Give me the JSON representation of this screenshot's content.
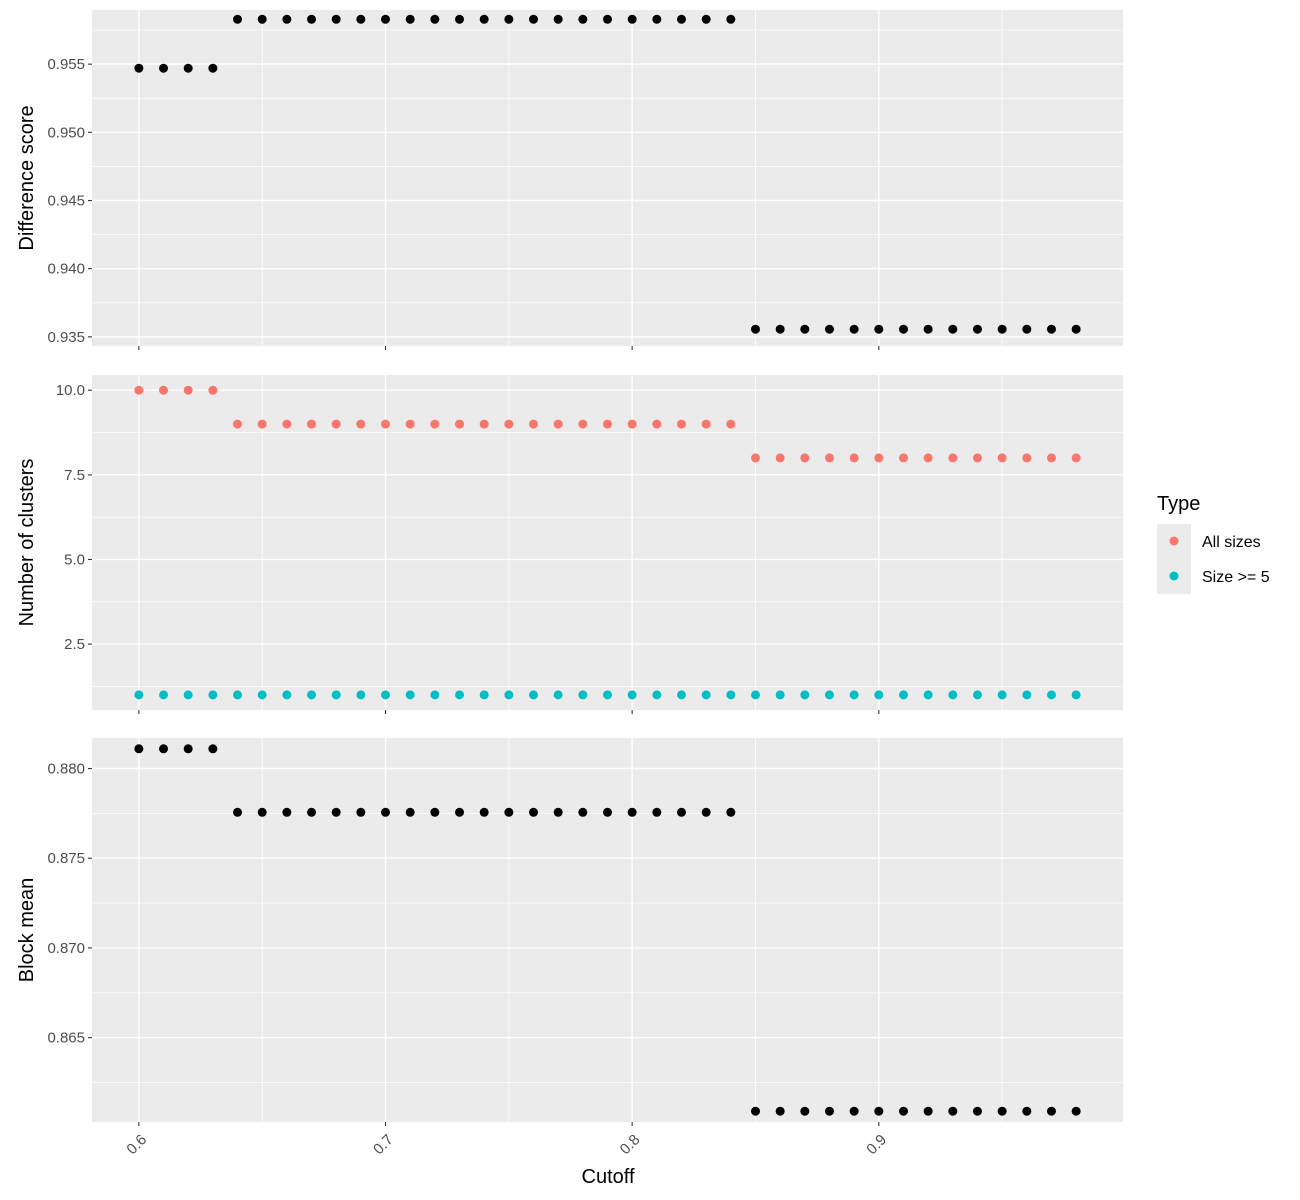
{
  "chart_data": [
    {
      "type": "scatter",
      "ylabel": "Difference score",
      "xlabel": "",
      "xlim": [
        0.581,
        0.999
      ],
      "ylim": [
        0.93433,
        0.95897
      ],
      "x_ticks": [
        0.6,
        0.7,
        0.8,
        0.9
      ],
      "y_ticks": [
        0.935,
        0.94,
        0.945,
        0.95,
        0.955
      ],
      "y_tick_labels": [
        "0.935",
        "0.940",
        "0.945",
        "0.950",
        "0.955"
      ],
      "series": [
        {
          "color": "#000000",
          "points": [
            [
              0.6,
              0.9547
            ],
            [
              0.61,
              0.9547
            ],
            [
              0.62,
              0.9547
            ],
            [
              0.63,
              0.9547
            ],
            [
              0.64,
              0.95829
            ],
            [
              0.65,
              0.95829
            ],
            [
              0.66,
              0.95829
            ],
            [
              0.67,
              0.95829
            ],
            [
              0.68,
              0.95829
            ],
            [
              0.69,
              0.95829
            ],
            [
              0.7,
              0.95829
            ],
            [
              0.71,
              0.95829
            ],
            [
              0.72,
              0.95829
            ],
            [
              0.73,
              0.95829
            ],
            [
              0.74,
              0.95829
            ],
            [
              0.75,
              0.95829
            ],
            [
              0.76,
              0.95829
            ],
            [
              0.77,
              0.95829
            ],
            [
              0.78,
              0.95829
            ],
            [
              0.79,
              0.95829
            ],
            [
              0.8,
              0.95829
            ],
            [
              0.81,
              0.95829
            ],
            [
              0.82,
              0.95829
            ],
            [
              0.83,
              0.95829
            ],
            [
              0.84,
              0.95829
            ],
            [
              0.85,
              0.93556
            ],
            [
              0.86,
              0.93556
            ],
            [
              0.87,
              0.93556
            ],
            [
              0.88,
              0.93556
            ],
            [
              0.89,
              0.93556
            ],
            [
              0.9,
              0.93556
            ],
            [
              0.91,
              0.93556
            ],
            [
              0.92,
              0.93556
            ],
            [
              0.93,
              0.93556
            ],
            [
              0.94,
              0.93556
            ],
            [
              0.95,
              0.93556
            ],
            [
              0.96,
              0.93556
            ],
            [
              0.97,
              0.93556
            ],
            [
              0.98,
              0.93556
            ]
          ]
        }
      ]
    },
    {
      "type": "scatter",
      "ylabel": "Number of clusters",
      "xlabel": "",
      "xlim": [
        0.581,
        0.999
      ],
      "ylim": [
        0.553,
        10.45
      ],
      "x_ticks": [
        0.6,
        0.7,
        0.8,
        0.9
      ],
      "y_ticks": [
        2.5,
        5.0,
        7.5,
        10.0
      ],
      "y_tick_labels": [
        "2.5",
        "5.0",
        "7.5",
        "10.0"
      ],
      "series": [
        {
          "name": "All sizes",
          "color": "#F8766D",
          "points": [
            [
              0.6,
              10
            ],
            [
              0.61,
              10
            ],
            [
              0.62,
              10
            ],
            [
              0.63,
              10
            ],
            [
              0.64,
              9
            ],
            [
              0.65,
              9
            ],
            [
              0.66,
              9
            ],
            [
              0.67,
              9
            ],
            [
              0.68,
              9
            ],
            [
              0.69,
              9
            ],
            [
              0.7,
              9
            ],
            [
              0.71,
              9
            ],
            [
              0.72,
              9
            ],
            [
              0.73,
              9
            ],
            [
              0.74,
              9
            ],
            [
              0.75,
              9
            ],
            [
              0.76,
              9
            ],
            [
              0.77,
              9
            ],
            [
              0.78,
              9
            ],
            [
              0.79,
              9
            ],
            [
              0.8,
              9
            ],
            [
              0.81,
              9
            ],
            [
              0.82,
              9
            ],
            [
              0.83,
              9
            ],
            [
              0.84,
              9
            ],
            [
              0.85,
              8
            ],
            [
              0.86,
              8
            ],
            [
              0.87,
              8
            ],
            [
              0.88,
              8
            ],
            [
              0.89,
              8
            ],
            [
              0.9,
              8
            ],
            [
              0.91,
              8
            ],
            [
              0.92,
              8
            ],
            [
              0.93,
              8
            ],
            [
              0.94,
              8
            ],
            [
              0.95,
              8
            ],
            [
              0.96,
              8
            ],
            [
              0.97,
              8
            ],
            [
              0.98,
              8
            ]
          ]
        },
        {
          "name": "Size >= 5",
          "color": "#00BFC4",
          "points": [
            [
              0.6,
              1
            ],
            [
              0.61,
              1
            ],
            [
              0.62,
              1
            ],
            [
              0.63,
              1
            ],
            [
              0.64,
              1
            ],
            [
              0.65,
              1
            ],
            [
              0.66,
              1
            ],
            [
              0.67,
              1
            ],
            [
              0.68,
              1
            ],
            [
              0.69,
              1
            ],
            [
              0.7,
              1
            ],
            [
              0.71,
              1
            ],
            [
              0.72,
              1
            ],
            [
              0.73,
              1
            ],
            [
              0.74,
              1
            ],
            [
              0.75,
              1
            ],
            [
              0.76,
              1
            ],
            [
              0.77,
              1
            ],
            [
              0.78,
              1
            ],
            [
              0.79,
              1
            ],
            [
              0.8,
              1
            ],
            [
              0.81,
              1
            ],
            [
              0.82,
              1
            ],
            [
              0.83,
              1
            ],
            [
              0.84,
              1
            ],
            [
              0.85,
              1
            ],
            [
              0.86,
              1
            ],
            [
              0.87,
              1
            ],
            [
              0.88,
              1
            ],
            [
              0.89,
              1
            ],
            [
              0.9,
              1
            ],
            [
              0.91,
              1
            ],
            [
              0.92,
              1
            ],
            [
              0.93,
              1
            ],
            [
              0.94,
              1
            ],
            [
              0.95,
              1
            ],
            [
              0.96,
              1
            ],
            [
              0.97,
              1
            ],
            [
              0.98,
              1
            ]
          ]
        }
      ]
    },
    {
      "type": "scatter",
      "ylabel": "Block mean",
      "xlabel": "Cutoff",
      "xlim": [
        0.581,
        0.999
      ],
      "ylim": [
        0.8603,
        0.8817
      ],
      "x_ticks": [
        0.6,
        0.7,
        0.8,
        0.9
      ],
      "x_tick_labels": [
        "0.6",
        "0.7",
        "0.8",
        "0.9"
      ],
      "y_ticks": [
        0.865,
        0.87,
        0.875,
        0.88
      ],
      "y_tick_labels": [
        "0.865",
        "0.870",
        "0.875",
        "0.880"
      ],
      "series": [
        {
          "color": "#000000",
          "points": [
            [
              0.6,
              0.8811
            ],
            [
              0.61,
              0.8811
            ],
            [
              0.62,
              0.8811
            ],
            [
              0.63,
              0.8811
            ],
            [
              0.64,
              0.87756
            ],
            [
              0.65,
              0.87756
            ],
            [
              0.66,
              0.87756
            ],
            [
              0.67,
              0.87756
            ],
            [
              0.68,
              0.87756
            ],
            [
              0.69,
              0.87756
            ],
            [
              0.7,
              0.87756
            ],
            [
              0.71,
              0.87756
            ],
            [
              0.72,
              0.87756
            ],
            [
              0.73,
              0.87756
            ],
            [
              0.74,
              0.87756
            ],
            [
              0.75,
              0.87756
            ],
            [
              0.76,
              0.87756
            ],
            [
              0.77,
              0.87756
            ],
            [
              0.78,
              0.87756
            ],
            [
              0.79,
              0.87756
            ],
            [
              0.8,
              0.87756
            ],
            [
              0.81,
              0.87756
            ],
            [
              0.82,
              0.87756
            ],
            [
              0.83,
              0.87756
            ],
            [
              0.84,
              0.87756
            ],
            [
              0.85,
              0.8609
            ],
            [
              0.86,
              0.8609
            ],
            [
              0.87,
              0.8609
            ],
            [
              0.88,
              0.8609
            ],
            [
              0.89,
              0.8609
            ],
            [
              0.9,
              0.8609
            ],
            [
              0.91,
              0.8609
            ],
            [
              0.92,
              0.8609
            ],
            [
              0.93,
              0.8609
            ],
            [
              0.94,
              0.8609
            ],
            [
              0.95,
              0.8609
            ],
            [
              0.96,
              0.8609
            ],
            [
              0.97,
              0.8609
            ],
            [
              0.98,
              0.8609
            ]
          ]
        }
      ]
    }
  ],
  "legend": {
    "title": "Type",
    "position": "right",
    "items": [
      {
        "label": "All sizes",
        "color": "#F8766D"
      },
      {
        "label": "Size >= 5",
        "color": "#00BFC4"
      }
    ]
  },
  "style": {
    "panel_background": "#EBEBEB",
    "grid_color": "#FFFFFF",
    "tick_color": "#333333",
    "tick_label_color": "#4D4D4D"
  }
}
